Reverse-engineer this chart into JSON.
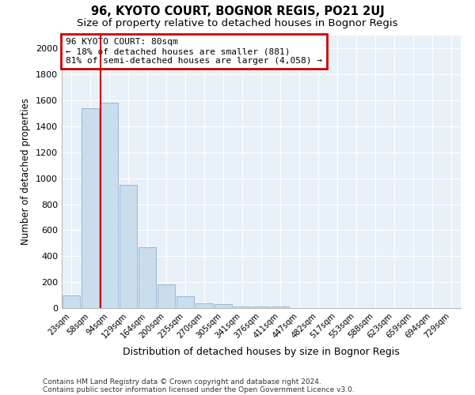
{
  "title": "96, KYOTO COURT, BOGNOR REGIS, PO21 2UJ",
  "subtitle": "Size of property relative to detached houses in Bognor Regis",
  "xlabel": "Distribution of detached houses by size in Bognor Regis",
  "ylabel": "Number of detached properties",
  "categories": [
    "23sqm",
    "58sqm",
    "94sqm",
    "129sqm",
    "164sqm",
    "200sqm",
    "235sqm",
    "270sqm",
    "305sqm",
    "341sqm",
    "376sqm",
    "411sqm",
    "447sqm",
    "482sqm",
    "517sqm",
    "553sqm",
    "588sqm",
    "623sqm",
    "659sqm",
    "694sqm",
    "729sqm"
  ],
  "values": [
    100,
    1540,
    1580,
    950,
    470,
    180,
    90,
    38,
    28,
    15,
    15,
    10,
    0,
    0,
    0,
    0,
    0,
    0,
    0,
    0,
    0
  ],
  "bar_color": "#c9dded",
  "bar_edge_color": "#9ab8d4",
  "vline_color": "#cc0000",
  "vline_x": 1.55,
  "annotation_label": "96 KYOTO COURT: 80sqm",
  "annotation_line1": "← 18% of detached houses are smaller (881)",
  "annotation_line2": "81% of semi-detached houses are larger (4,058) →",
  "annotation_box_color": "#ffffff",
  "annotation_box_edge_color": "#cc0000",
  "ylim": [
    0,
    2100
  ],
  "yticks": [
    0,
    200,
    400,
    600,
    800,
    1000,
    1200,
    1400,
    1600,
    1800,
    2000
  ],
  "plot_bg_color": "#e8f0f8",
  "grid_color": "#ffffff",
  "footer1": "Contains HM Land Registry data © Crown copyright and database right 2024.",
  "footer2": "Contains public sector information licensed under the Open Government Licence v3.0.",
  "title_fontsize": 10.5,
  "subtitle_fontsize": 9.5,
  "footer_fontsize": 6.5
}
